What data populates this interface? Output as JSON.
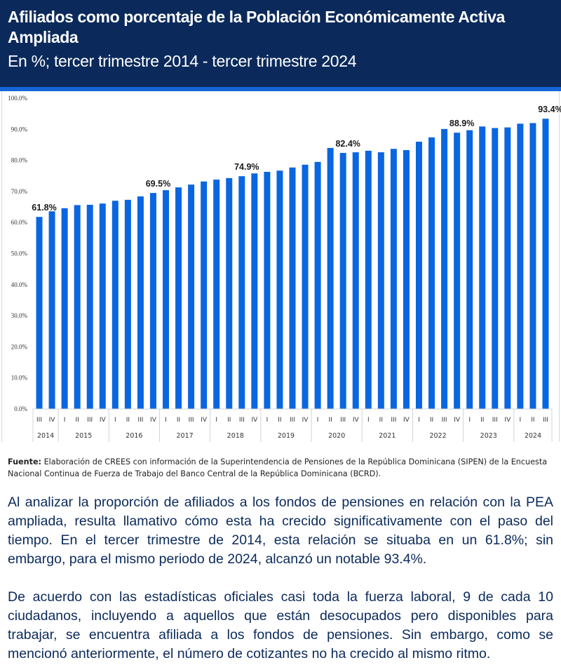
{
  "header": {
    "title": "Afiliados como porcentaje de la Población Económicamente Activa Ampliada",
    "subtitle": "En %; tercer trimestre 2014 - tercer trimestre 2024"
  },
  "colors": {
    "header_bg": "#0b2a5b",
    "accent": "#1565d8",
    "bar": "#0a66e0",
    "body_text": "#0b2a5b"
  },
  "chart_data": {
    "type": "bar",
    "title": "Afiliados como porcentaje de la Población Económicamente Activa Ampliada",
    "xlabel": "",
    "ylabel": "",
    "ylim": [
      0,
      100
    ],
    "yticks": [
      "0.0%",
      "10.0%",
      "20.0%",
      "30.0%",
      "40.0%",
      "50.0%",
      "60.0%",
      "70.0%",
      "80.0%",
      "90.0%",
      "100.0%"
    ],
    "grid": false,
    "legend": "none",
    "years": [
      {
        "year": "2014",
        "quarters": [
          "III",
          "IV"
        ]
      },
      {
        "year": "2015",
        "quarters": [
          "I",
          "II",
          "III",
          "IV"
        ]
      },
      {
        "year": "2016",
        "quarters": [
          "I",
          "II",
          "III",
          "IV"
        ]
      },
      {
        "year": "2017",
        "quarters": [
          "I",
          "II",
          "III",
          "IV"
        ]
      },
      {
        "year": "2018",
        "quarters": [
          "I",
          "II",
          "III",
          "IV"
        ]
      },
      {
        "year": "2019",
        "quarters": [
          "I",
          "II",
          "III",
          "IV"
        ]
      },
      {
        "year": "2020",
        "quarters": [
          "I",
          "II",
          "III",
          "IV"
        ]
      },
      {
        "year": "2021",
        "quarters": [
          "I",
          "II",
          "III",
          "IV"
        ]
      },
      {
        "year": "2022",
        "quarters": [
          "I",
          "II",
          "III",
          "IV"
        ]
      },
      {
        "year": "2023",
        "quarters": [
          "I",
          "II",
          "III",
          "IV"
        ]
      },
      {
        "year": "2024",
        "quarters": [
          "I",
          "II",
          "III"
        ]
      }
    ],
    "categories": [
      "2014 III",
      "2014 IV",
      "2015 I",
      "2015 II",
      "2015 III",
      "2015 IV",
      "2016 I",
      "2016 II",
      "2016 III",
      "2016 IV",
      "2017 I",
      "2017 II",
      "2017 III",
      "2017 IV",
      "2018 I",
      "2018 II",
      "2018 III",
      "2018 IV",
      "2019 I",
      "2019 II",
      "2019 III",
      "2019 IV",
      "2020 I",
      "2020 II",
      "2020 III",
      "2020 IV",
      "2021 I",
      "2021 II",
      "2021 III",
      "2021 IV",
      "2022 I",
      "2022 II",
      "2022 III",
      "2022 IV",
      "2023 I",
      "2023 II",
      "2023 III",
      "2023 IV",
      "2024 I",
      "2024 II",
      "2024 III"
    ],
    "values": [
      61.8,
      63.6,
      64.6,
      65.6,
      65.7,
      66.1,
      67.0,
      67.3,
      68.4,
      69.5,
      70.4,
      71.3,
      72.2,
      73.2,
      73.8,
      74.3,
      74.9,
      75.8,
      76.3,
      76.7,
      77.7,
      78.6,
      79.5,
      84.0,
      82.4,
      82.6,
      83.1,
      82.6,
      83.7,
      83.3,
      86.0,
      87.4,
      90.1,
      88.9,
      89.7,
      90.9,
      90.4,
      90.6,
      91.8,
      92.0,
      93.4
    ],
    "data_labels": [
      {
        "category": "2014 III",
        "text": "61.8%"
      },
      {
        "category": "2016 IV",
        "text": "69.5%"
      },
      {
        "category": "2018 III",
        "text": "74.9%"
      },
      {
        "category": "2020 III",
        "text": "82.4%"
      },
      {
        "category": "2022 IV",
        "text": "88.9%"
      },
      {
        "category": "2024 III",
        "text": "93.4%"
      }
    ]
  },
  "footer": {
    "source_label": "Fuente:",
    "source_text": " Elaboración de CREES con información de la Superintendencia de Pensiones de la República Dominicana (SIPEN) de la Encuesta Nacional Continua de Fuerza de Trabajo del Banco Central de la República Dominicana (BCRD)."
  },
  "body": {
    "paragraph1": "Al analizar la proporción de afiliados a los fondos de pensiones en relación con la PEA ampliada, resulta llamativo cómo esta ha crecido significativamente con el paso del tiempo. En el tercer trimestre de 2014, esta relación se situaba en un 61.8%; sin embargo, para el mismo periodo de 2024, alcanzó un notable 93.4%.",
    "paragraph2": "De acuerdo con las estadísticas oficiales casi toda la fuerza laboral, 9 de cada 10 ciudadanos, incluyendo a aquellos que están desocupados pero disponibles para trabajar, se encuentra afiliada a los fondos de pensiones. Sin embargo, como se mencionó anteriormente, el número de cotizantes no ha crecido al mismo ritmo."
  }
}
